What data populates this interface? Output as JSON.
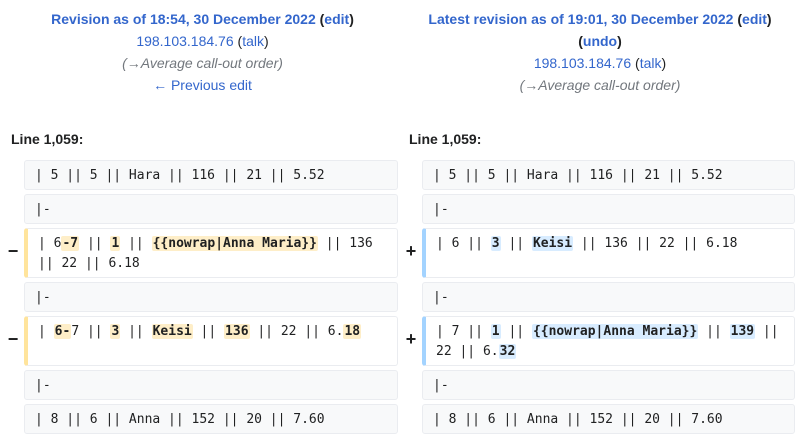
{
  "left_header": {
    "title": "Revision as of 18:54, 30 December 2022",
    "edit": "edit",
    "user": "198.103.184.76",
    "talk": "talk",
    "comment_arrow": "→",
    "comment_section": "Average call-out order",
    "prev": "← Previous edit"
  },
  "right_header": {
    "title": "Latest revision as of 19:01, 30 December 2022",
    "edit": "edit",
    "undo": "undo",
    "user": "198.103.184.76",
    "talk": "talk",
    "comment_arrow": "→",
    "comment_section": "Average call-out order"
  },
  "line_label_left": "Line 1,059:",
  "line_label_right": "Line 1,059:",
  "markers": {
    "minus": "−",
    "plus": "+"
  },
  "rows": {
    "r1": "| 5 || 5 || Hara || 116 || 21 || 5.52",
    "sep": "|-",
    "r_last": "| 8 || 6 || Anna || 152 || 20 || 7.60"
  },
  "del1": {
    "p1": "| 6",
    "h1": "-7",
    "p2": " || ",
    "h2": "1",
    "p3": " || ",
    "h3": "{{nowrap|Anna Maria}}",
    "p4": " || 136 || 22 || 6.18"
  },
  "add1": {
    "p1": "| 6 || ",
    "h1": "3",
    "p2": " || ",
    "h2": "Keisi",
    "p3": " || 136 || 22 || 6.18"
  },
  "del2": {
    "p1": "| ",
    "h1": "6-",
    "p2": "7 || ",
    "h2": "3",
    "p3": " || ",
    "h3": "Keisi",
    "p4": " || ",
    "h4": "136",
    "p5": " || 22 || 6.",
    "h5": "18"
  },
  "add2": {
    "p1": "| 7 || ",
    "h1": "1",
    "p2": " || ",
    "h2": "{{nowrap|Anna Maria}}",
    "p3": " || ",
    "h3": "139",
    "p4": " || 22 || 6.",
    "h4": "32"
  }
}
